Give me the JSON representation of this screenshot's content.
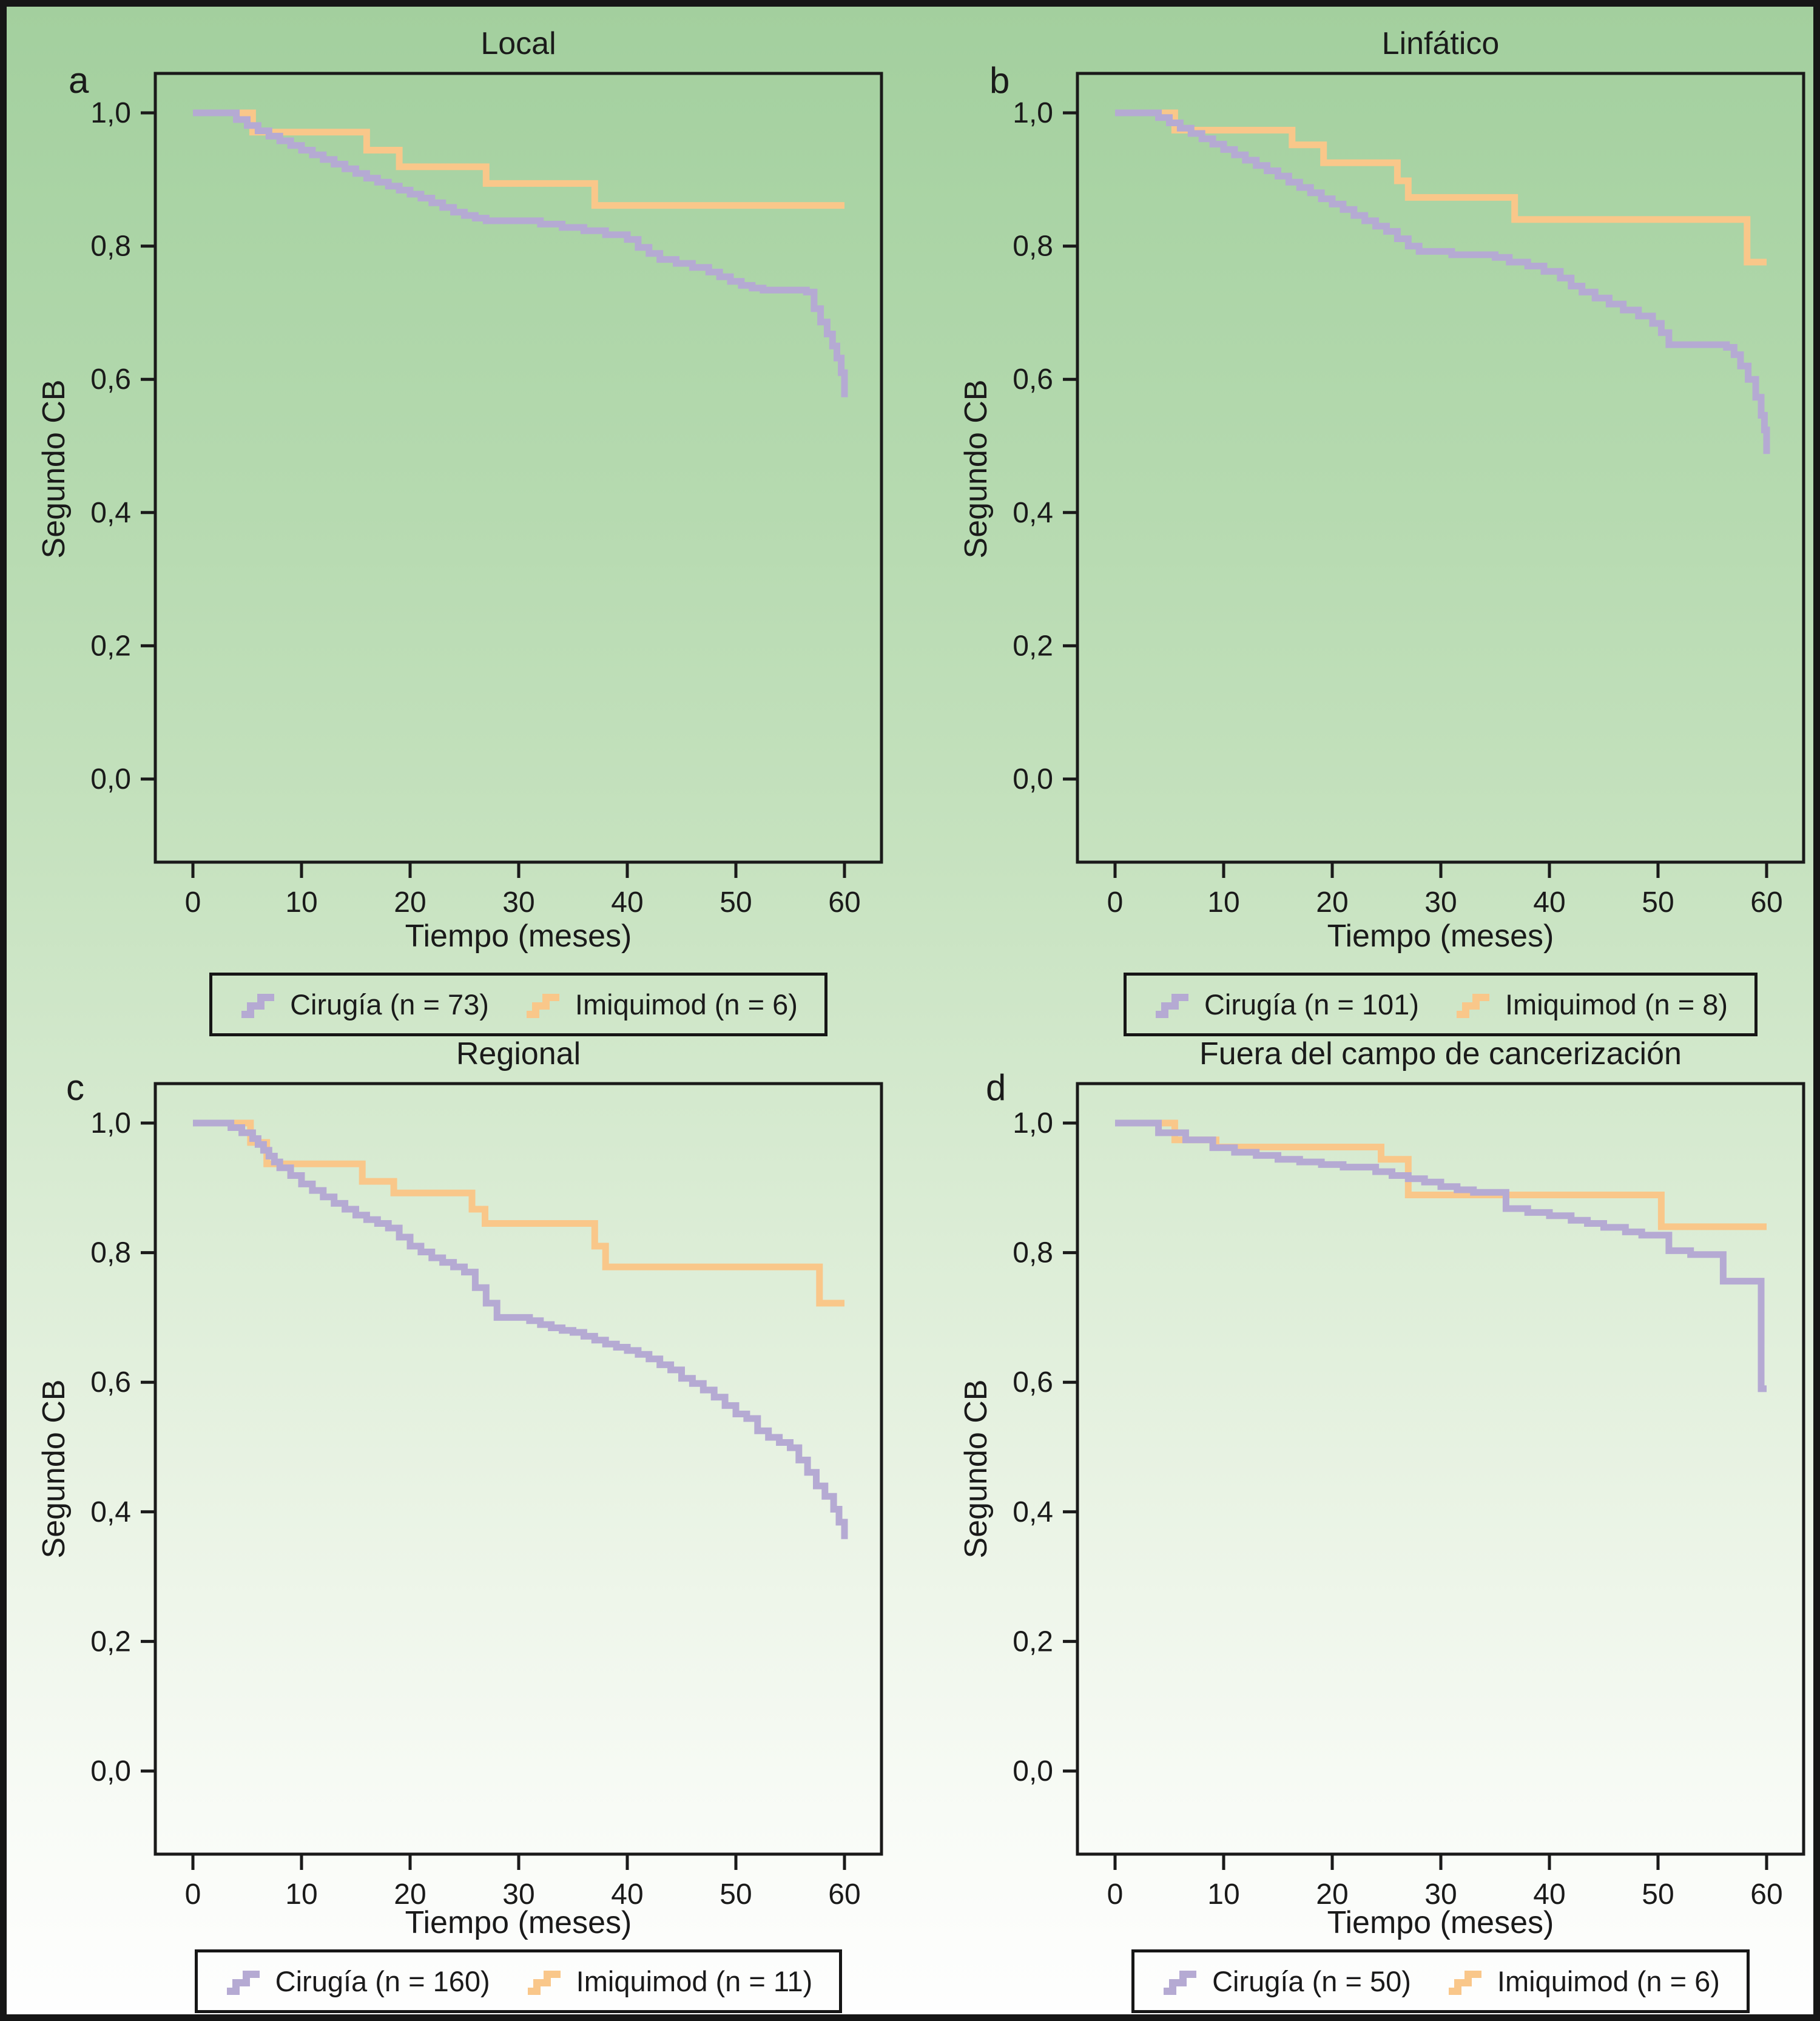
{
  "figure": {
    "y_axis_label": "Segundo CB",
    "x_axis_label": "Tiempo (meses)",
    "y_ticks_labels": [
      "1,0",
      "0,8",
      "0,6",
      "0,4",
      "0,2",
      "0,0"
    ],
    "y_ticks_values": [
      1.0,
      0.8,
      0.6,
      0.4,
      0.2,
      0.0
    ],
    "x_ticks": [
      0,
      10,
      20,
      30,
      40,
      50,
      60
    ]
  },
  "colors": {
    "cirugia": "#b5aad3",
    "imiquimod": "#f9c78a",
    "frame": "#1a1a1a",
    "text": "#1a1a1a"
  },
  "chart_data": [
    {
      "id": "a",
      "letter": "a",
      "title": "Local",
      "type": "line",
      "xlabel": "Tiempo (meses)",
      "ylabel": "Segundo CB",
      "xlim": [
        0,
        63
      ],
      "ylim": [
        0.0,
        1.05
      ],
      "legend": [
        {
          "label": "Cirugía (n = 73)",
          "series": "cirugia"
        },
        {
          "label": "Imiquimod (n = 6)",
          "series": "imiquimod"
        }
      ],
      "series": [
        {
          "key": "imiquimod",
          "name": "Imiquimod",
          "n": 6,
          "end": 60,
          "steps": [
            [
              0,
              1.0
            ],
            [
              5.5,
              0.971
            ],
            [
              16,
              0.944
            ],
            [
              19,
              0.919
            ],
            [
              27,
              0.894
            ],
            [
              37,
              0.861
            ],
            [
              60,
              0.861
            ]
          ]
        },
        {
          "key": "cirugia",
          "name": "Cirugía",
          "n": 73,
          "end": 60,
          "steps": [
            [
              0,
              1.0
            ],
            [
              4,
              0.99
            ],
            [
              5,
              0.981
            ],
            [
              6,
              0.973
            ],
            [
              7,
              0.965
            ],
            [
              8,
              0.958
            ],
            [
              9,
              0.951
            ],
            [
              10,
              0.944
            ],
            [
              11,
              0.937
            ],
            [
              12,
              0.93
            ],
            [
              13,
              0.923
            ],
            [
              14,
              0.916
            ],
            [
              15,
              0.909
            ],
            [
              16,
              0.902
            ],
            [
              17,
              0.896
            ],
            [
              18,
              0.89
            ],
            [
              19,
              0.884
            ],
            [
              20,
              0.878
            ],
            [
              21,
              0.872
            ],
            [
              22,
              0.865
            ],
            [
              23,
              0.858
            ],
            [
              24,
              0.851
            ],
            [
              25,
              0.846
            ],
            [
              26,
              0.842
            ],
            [
              27,
              0.838
            ],
            [
              32,
              0.833
            ],
            [
              34,
              0.828
            ],
            [
              36,
              0.823
            ],
            [
              38,
              0.817
            ],
            [
              40,
              0.81
            ],
            [
              41,
              0.798
            ],
            [
              42,
              0.789
            ],
            [
              43,
              0.78
            ],
            [
              44.5,
              0.774
            ],
            [
              46,
              0.768
            ],
            [
              47.5,
              0.761
            ],
            [
              48.5,
              0.754
            ],
            [
              49.5,
              0.747
            ],
            [
              50.5,
              0.741
            ],
            [
              51.5,
              0.737
            ],
            [
              52.5,
              0.734
            ],
            [
              56.5,
              0.731
            ],
            [
              57.2,
              0.706
            ],
            [
              57.8,
              0.686
            ],
            [
              58.4,
              0.668
            ],
            [
              58.9,
              0.65
            ],
            [
              59.3,
              0.632
            ],
            [
              59.7,
              0.61
            ],
            [
              60,
              0.573
            ]
          ]
        }
      ]
    },
    {
      "id": "b",
      "letter": "b",
      "title": "Linfático",
      "type": "line",
      "xlabel": "Tiempo (meses)",
      "ylabel": "Segundo CB",
      "xlim": [
        0,
        63
      ],
      "ylim": [
        0.0,
        1.05
      ],
      "legend": [
        {
          "label": "Cirugía (n = 101)",
          "series": "cirugia"
        },
        {
          "label": "Imiquimod (n = 8)",
          "series": "imiquimod"
        }
      ],
      "series": [
        {
          "key": "imiquimod",
          "name": "Imiquimod",
          "n": 8,
          "end": 60,
          "steps": [
            [
              0,
              1.0
            ],
            [
              5.5,
              0.974
            ],
            [
              16.3,
              0.952
            ],
            [
              19.2,
              0.925
            ],
            [
              26,
              0.898
            ],
            [
              27,
              0.873
            ],
            [
              36.8,
              0.84
            ],
            [
              58.2,
              0.776
            ],
            [
              60,
              0.776
            ]
          ]
        },
        {
          "key": "cirugia",
          "name": "Cirugía",
          "n": 101,
          "end": 60,
          "steps": [
            [
              0,
              1.0
            ],
            [
              4,
              0.993
            ],
            [
              5,
              0.985
            ],
            [
              6,
              0.977
            ],
            [
              7,
              0.969
            ],
            [
              8,
              0.961
            ],
            [
              9,
              0.953
            ],
            [
              10,
              0.945
            ],
            [
              11,
              0.937
            ],
            [
              12,
              0.929
            ],
            [
              13,
              0.921
            ],
            [
              14,
              0.913
            ],
            [
              15,
              0.905
            ],
            [
              16,
              0.896
            ],
            [
              17,
              0.888
            ],
            [
              18,
              0.88
            ],
            [
              19,
              0.871
            ],
            [
              20,
              0.863
            ],
            [
              21,
              0.855
            ],
            [
              22,
              0.846
            ],
            [
              23,
              0.838
            ],
            [
              24,
              0.83
            ],
            [
              25,
              0.822
            ],
            [
              26,
              0.811
            ],
            [
              27,
              0.8
            ],
            [
              28,
              0.792
            ],
            [
              31,
              0.787
            ],
            [
              35,
              0.783
            ],
            [
              36.3,
              0.776
            ],
            [
              38,
              0.77
            ],
            [
              39.5,
              0.762
            ],
            [
              41,
              0.752
            ],
            [
              42,
              0.74
            ],
            [
              43,
              0.731
            ],
            [
              44.2,
              0.722
            ],
            [
              45.5,
              0.713
            ],
            [
              46.8,
              0.704
            ],
            [
              48.2,
              0.695
            ],
            [
              49.5,
              0.684
            ],
            [
              50.3,
              0.67
            ],
            [
              51,
              0.652
            ],
            [
              56.3,
              0.648
            ],
            [
              57,
              0.637
            ],
            [
              57.6,
              0.62
            ],
            [
              58.3,
              0.6
            ],
            [
              59,
              0.573
            ],
            [
              59.5,
              0.546
            ],
            [
              59.8,
              0.524
            ],
            [
              60,
              0.488
            ]
          ]
        }
      ]
    },
    {
      "id": "c",
      "letter": "c",
      "title": "Regional",
      "type": "line",
      "xlabel": "Tiempo (meses)",
      "ylabel": "Segundo CB",
      "xlim": [
        0,
        63
      ],
      "ylim": [
        0.0,
        1.05
      ],
      "legend": [
        {
          "label": "Cirugía (n = 160)",
          "series": "cirugia"
        },
        {
          "label": "Imiquimod (n = 11)",
          "series": "imiquimod"
        }
      ],
      "series": [
        {
          "key": "imiquimod",
          "name": "Imiquimod",
          "n": 11,
          "end": 60,
          "steps": [
            [
              0,
              1.0
            ],
            [
              5.3,
              0.97
            ],
            [
              6.8,
              0.937
            ],
            [
              15.6,
              0.91
            ],
            [
              18.5,
              0.892
            ],
            [
              25.7,
              0.867
            ],
            [
              26.9,
              0.845
            ],
            [
              37,
              0.81
            ],
            [
              38,
              0.778
            ],
            [
              57.7,
              0.722
            ],
            [
              60,
              0.722
            ]
          ]
        },
        {
          "key": "cirugia",
          "name": "Cirugía",
          "n": 160,
          "end": 60,
          "steps": [
            [
              0,
              1.0
            ],
            [
              3.5,
              0.993
            ],
            [
              4.5,
              0.985
            ],
            [
              5.5,
              0.976
            ],
            [
              6,
              0.967
            ],
            [
              6.5,
              0.958
            ],
            [
              7,
              0.949
            ],
            [
              7.5,
              0.94
            ],
            [
              8,
              0.931
            ],
            [
              9,
              0.919
            ],
            [
              10,
              0.906
            ],
            [
              11,
              0.896
            ],
            [
              12,
              0.886
            ],
            [
              13,
              0.876
            ],
            [
              14,
              0.867
            ],
            [
              15,
              0.858
            ],
            [
              16,
              0.851
            ],
            [
              17,
              0.845
            ],
            [
              18,
              0.838
            ],
            [
              19,
              0.824
            ],
            [
              20,
              0.81
            ],
            [
              21,
              0.801
            ],
            [
              22,
              0.792
            ],
            [
              23,
              0.785
            ],
            [
              24,
              0.778
            ],
            [
              25,
              0.77
            ],
            [
              26,
              0.746
            ],
            [
              27,
              0.722
            ],
            [
              28,
              0.7
            ],
            [
              31,
              0.695
            ],
            [
              32,
              0.689
            ],
            [
              33,
              0.684
            ],
            [
              34,
              0.68
            ],
            [
              35,
              0.677
            ],
            [
              36,
              0.671
            ],
            [
              37,
              0.665
            ],
            [
              38,
              0.659
            ],
            [
              39,
              0.654
            ],
            [
              40,
              0.649
            ],
            [
              41,
              0.643
            ],
            [
              42,
              0.636
            ],
            [
              43,
              0.627
            ],
            [
              44,
              0.619
            ],
            [
              45,
              0.606
            ],
            [
              46,
              0.598
            ],
            [
              47,
              0.588
            ],
            [
              48,
              0.577
            ],
            [
              49,
              0.564
            ],
            [
              50,
              0.551
            ],
            [
              51,
              0.544
            ],
            [
              52,
              0.525
            ],
            [
              53,
              0.515
            ],
            [
              54,
              0.507
            ],
            [
              55,
              0.499
            ],
            [
              55.8,
              0.48
            ],
            [
              56.6,
              0.461
            ],
            [
              57.4,
              0.44
            ],
            [
              58.2,
              0.424
            ],
            [
              59,
              0.404
            ],
            [
              59.5,
              0.384
            ],
            [
              60,
              0.358
            ]
          ]
        }
      ]
    },
    {
      "id": "d",
      "letter": "d",
      "title": "Fuera del campo de cancerización",
      "type": "line",
      "xlabel": "Tiempo (meses)",
      "ylabel": "Segundo CB",
      "xlim": [
        0,
        63
      ],
      "ylim": [
        0.0,
        1.05
      ],
      "legend": [
        {
          "label": "Cirugía (n = 50)",
          "series": "cirugia"
        },
        {
          "label": "Imiquimod (n = 6)",
          "series": "imiquimod"
        }
      ],
      "series": [
        {
          "key": "imiquimod",
          "name": "Imiquimod",
          "n": 6,
          "end": 60,
          "steps": [
            [
              0,
              1.0
            ],
            [
              5.5,
              0.974
            ],
            [
              9.3,
              0.963
            ],
            [
              24.5,
              0.944
            ],
            [
              27,
              0.889
            ],
            [
              50.3,
              0.84
            ],
            [
              60,
              0.84
            ]
          ]
        },
        {
          "key": "cirugia",
          "name": "Cirugía",
          "n": 50,
          "end": 60,
          "steps": [
            [
              0,
              1.0
            ],
            [
              4,
              0.985
            ],
            [
              6.5,
              0.974
            ],
            [
              9,
              0.962
            ],
            [
              11,
              0.955
            ],
            [
              13,
              0.95
            ],
            [
              15,
              0.944
            ],
            [
              17,
              0.94
            ],
            [
              19,
              0.936
            ],
            [
              21,
              0.932
            ],
            [
              24,
              0.925
            ],
            [
              25.5,
              0.919
            ],
            [
              27,
              0.914
            ],
            [
              28.5,
              0.909
            ],
            [
              30,
              0.902
            ],
            [
              31.5,
              0.897
            ],
            [
              33,
              0.893
            ],
            [
              36,
              0.868
            ],
            [
              38,
              0.862
            ],
            [
              40,
              0.857
            ],
            [
              42,
              0.85
            ],
            [
              43.5,
              0.845
            ],
            [
              45,
              0.839
            ],
            [
              47,
              0.832
            ],
            [
              48.5,
              0.827
            ],
            [
              51,
              0.803
            ],
            [
              53,
              0.797
            ],
            [
              56,
              0.756
            ],
            [
              59.4,
              0.756
            ],
            [
              59.5,
              0.59
            ],
            [
              60,
              0.59
            ]
          ]
        }
      ]
    }
  ]
}
